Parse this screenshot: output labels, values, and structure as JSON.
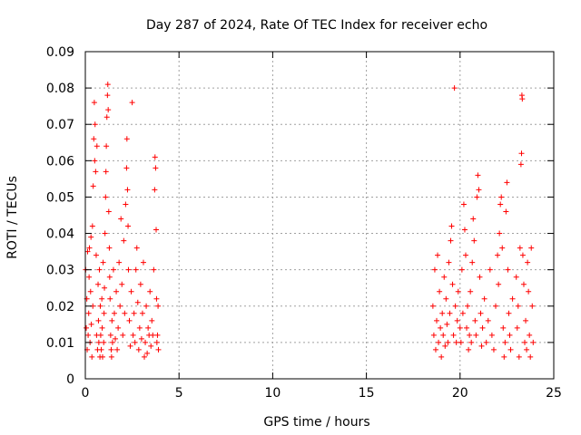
{
  "chart_data": {
    "type": "scatter",
    "title": "Day 287 of 2024, Rate Of TEC Index for receiver echo",
    "xlabel": "GPS time / hours",
    "ylabel": "ROTI / TECUs",
    "xlim": [
      0,
      25
    ],
    "ylim": [
      0,
      0.09
    ],
    "xticks": [
      0,
      5,
      10,
      15,
      20,
      25
    ],
    "xtick_labels": [
      "0",
      "5",
      "10",
      "15",
      "20",
      "25"
    ],
    "yticks": [
      0,
      0.01,
      0.02,
      0.03,
      0.04,
      0.05,
      0.06,
      0.07,
      0.08,
      0.09
    ],
    "ytick_labels": [
      "0",
      "0.01",
      "0.02",
      "0.03",
      "0.04",
      "0.05",
      "0.06",
      "0.07",
      "0.08",
      "0.09"
    ],
    "grid": true,
    "marker": "+",
    "marker_color": "#ff0000",
    "series": [
      {
        "points": [
          [
            0.02,
            0.03
          ],
          [
            0.05,
            0.014
          ],
          [
            0.08,
            0.022
          ],
          [
            0.1,
            0.008
          ],
          [
            0.12,
            0.035
          ],
          [
            0.15,
            0.012
          ],
          [
            0.18,
            0.018
          ],
          [
            0.2,
            0.028
          ],
          [
            0.22,
            0.036
          ],
          [
            0.25,
            0.01
          ],
          [
            0.28,
            0.024
          ],
          [
            0.3,
            0.039
          ],
          [
            0.32,
            0.015
          ],
          [
            0.35,
            0.006
          ],
          [
            0.38,
            0.042
          ],
          [
            0.4,
            0.02
          ],
          [
            0.42,
            0.053
          ],
          [
            0.45,
            0.066
          ],
          [
            0.48,
            0.076
          ],
          [
            0.5,
            0.06
          ],
          [
            0.52,
            0.07
          ],
          [
            0.55,
            0.057
          ],
          [
            0.58,
            0.034
          ],
          [
            0.6,
            0.012
          ],
          [
            0.62,
            0.064
          ],
          [
            0.65,
            0.008
          ],
          [
            0.68,
            0.026
          ],
          [
            0.7,
            0.016
          ],
          [
            0.72,
            0.01
          ],
          [
            0.75,
            0.03
          ],
          [
            0.78,
            0.006
          ],
          [
            0.8,
            0.02
          ],
          [
            0.82,
            0.012
          ],
          [
            0.85,
            0.008
          ],
          [
            0.88,
            0.022
          ],
          [
            0.9,
            0.014
          ],
          [
            0.92,
            0.006
          ],
          [
            0.95,
            0.032
          ],
          [
            0.98,
            0.01
          ],
          [
            1.0,
            0.018
          ],
          [
            1.02,
            0.025
          ],
          [
            1.05,
            0.04
          ],
          [
            1.08,
            0.05
          ],
          [
            1.1,
            0.057
          ],
          [
            1.12,
            0.064
          ],
          [
            1.15,
            0.072
          ],
          [
            1.18,
            0.078
          ],
          [
            1.2,
            0.081
          ],
          [
            1.22,
            0.074
          ],
          [
            1.25,
            0.046
          ],
          [
            1.28,
            0.036
          ],
          [
            1.3,
            0.028
          ],
          [
            1.32,
            0.022
          ],
          [
            1.35,
            0.012
          ],
          [
            1.38,
            0.008
          ],
          [
            1.4,
            0.006
          ],
          [
            1.42,
            0.016
          ],
          [
            1.45,
            0.01
          ],
          [
            1.5,
            0.03
          ],
          [
            1.55,
            0.018
          ],
          [
            1.6,
            0.011
          ],
          [
            1.65,
            0.024
          ],
          [
            1.7,
            0.008
          ],
          [
            1.75,
            0.014
          ],
          [
            1.8,
            0.032
          ],
          [
            1.85,
            0.02
          ],
          [
            1.9,
            0.044
          ],
          [
            1.95,
            0.026
          ],
          [
            2.0,
            0.012
          ],
          [
            2.05,
            0.038
          ],
          [
            2.1,
            0.018
          ],
          [
            2.15,
            0.048
          ],
          [
            2.2,
            0.058
          ],
          [
            2.22,
            0.066
          ],
          [
            2.25,
            0.052
          ],
          [
            2.28,
            0.042
          ],
          [
            2.3,
            0.03
          ],
          [
            2.35,
            0.016
          ],
          [
            2.4,
            0.009
          ],
          [
            2.45,
            0.024
          ],
          [
            2.5,
            0.076
          ],
          [
            2.55,
            0.012
          ],
          [
            2.6,
            0.018
          ],
          [
            2.65,
            0.01
          ],
          [
            2.7,
            0.03
          ],
          [
            2.75,
            0.036
          ],
          [
            2.8,
            0.021
          ],
          [
            2.85,
            0.008
          ],
          [
            2.9,
            0.014
          ],
          [
            2.95,
            0.026
          ],
          [
            3.0,
            0.011
          ],
          [
            3.05,
            0.018
          ],
          [
            3.1,
            0.032
          ],
          [
            3.15,
            0.006
          ],
          [
            3.2,
            0.01
          ],
          [
            3.25,
            0.02
          ],
          [
            3.3,
            0.007
          ],
          [
            3.35,
            0.014
          ],
          [
            3.4,
            0.012
          ],
          [
            3.45,
            0.024
          ],
          [
            3.5,
            0.009
          ],
          [
            3.55,
            0.016
          ],
          [
            3.6,
            0.012
          ],
          [
            3.65,
            0.03
          ],
          [
            3.7,
            0.052
          ],
          [
            3.72,
            0.061
          ],
          [
            3.75,
            0.058
          ],
          [
            3.78,
            0.041
          ],
          [
            3.8,
            0.022
          ],
          [
            3.82,
            0.01
          ],
          [
            3.85,
            0.012
          ],
          [
            3.88,
            0.02
          ],
          [
            3.9,
            0.008
          ],
          [
            18.55,
            0.02
          ],
          [
            18.6,
            0.012
          ],
          [
            18.65,
            0.03
          ],
          [
            18.7,
            0.008
          ],
          [
            18.75,
            0.016
          ],
          [
            18.8,
            0.034
          ],
          [
            18.85,
            0.01
          ],
          [
            18.9,
            0.024
          ],
          [
            18.95,
            0.014
          ],
          [
            19.0,
            0.006
          ],
          [
            19.05,
            0.018
          ],
          [
            19.1,
            0.012
          ],
          [
            19.15,
            0.028
          ],
          [
            19.2,
            0.009
          ],
          [
            19.25,
            0.022
          ],
          [
            19.3,
            0.015
          ],
          [
            19.35,
            0.01
          ],
          [
            19.4,
            0.032
          ],
          [
            19.45,
            0.018
          ],
          [
            19.5,
            0.038
          ],
          [
            19.55,
            0.042
          ],
          [
            19.6,
            0.026
          ],
          [
            19.65,
            0.012
          ],
          [
            19.7,
            0.08
          ],
          [
            19.75,
            0.02
          ],
          [
            19.8,
            0.01
          ],
          [
            19.85,
            0.016
          ],
          [
            19.9,
            0.024
          ],
          [
            20.0,
            0.014
          ],
          [
            20.05,
            0.01
          ],
          [
            20.1,
            0.03
          ],
          [
            20.15,
            0.018
          ],
          [
            20.2,
            0.048
          ],
          [
            20.25,
            0.041
          ],
          [
            20.3,
            0.034
          ],
          [
            20.35,
            0.014
          ],
          [
            20.4,
            0.02
          ],
          [
            20.45,
            0.008
          ],
          [
            20.5,
            0.012
          ],
          [
            20.55,
            0.024
          ],
          [
            20.6,
            0.01
          ],
          [
            20.65,
            0.032
          ],
          [
            20.7,
            0.044
          ],
          [
            20.75,
            0.038
          ],
          [
            20.8,
            0.016
          ],
          [
            20.85,
            0.012
          ],
          [
            20.9,
            0.05
          ],
          [
            20.95,
            0.056
          ],
          [
            21.0,
            0.052
          ],
          [
            21.05,
            0.028
          ],
          [
            21.1,
            0.018
          ],
          [
            21.15,
            0.009
          ],
          [
            21.2,
            0.014
          ],
          [
            21.3,
            0.022
          ],
          [
            21.4,
            0.01
          ],
          [
            21.5,
            0.016
          ],
          [
            21.6,
            0.03
          ],
          [
            21.7,
            0.012
          ],
          [
            21.8,
            0.008
          ],
          [
            21.9,
            0.02
          ],
          [
            22.0,
            0.034
          ],
          [
            22.05,
            0.026
          ],
          [
            22.1,
            0.04
          ],
          [
            22.15,
            0.048
          ],
          [
            22.2,
            0.05
          ],
          [
            22.25,
            0.036
          ],
          [
            22.3,
            0.014
          ],
          [
            22.35,
            0.006
          ],
          [
            22.4,
            0.01
          ],
          [
            22.45,
            0.046
          ],
          [
            22.5,
            0.054
          ],
          [
            22.55,
            0.03
          ],
          [
            22.6,
            0.018
          ],
          [
            22.65,
            0.012
          ],
          [
            22.7,
            0.008
          ],
          [
            22.8,
            0.022
          ],
          [
            23.0,
            0.028
          ],
          [
            23.05,
            0.014
          ],
          [
            23.1,
            0.02
          ],
          [
            23.15,
            0.006
          ],
          [
            23.2,
            0.036
          ],
          [
            23.25,
            0.059
          ],
          [
            23.28,
            0.062
          ],
          [
            23.3,
            0.078
          ],
          [
            23.32,
            0.077
          ],
          [
            23.35,
            0.034
          ],
          [
            23.4,
            0.026
          ],
          [
            23.45,
            0.01
          ],
          [
            23.5,
            0.016
          ],
          [
            23.55,
            0.008
          ],
          [
            23.6,
            0.032
          ],
          [
            23.65,
            0.024
          ],
          [
            23.7,
            0.012
          ],
          [
            23.75,
            0.006
          ],
          [
            23.8,
            0.036
          ],
          [
            23.85,
            0.02
          ],
          [
            23.9,
            0.01
          ]
        ]
      }
    ]
  }
}
